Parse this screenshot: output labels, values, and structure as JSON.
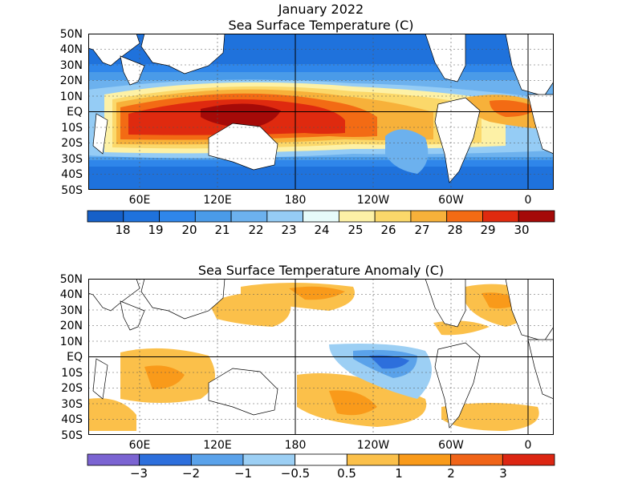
{
  "figure_title": "January 2022",
  "panels": [
    {
      "title": "Sea Surface Temperature (C)",
      "lat_labels": [
        "50N",
        "40N",
        "30N",
        "20N",
        "10N",
        "EQ",
        "10S",
        "20S",
        "30S",
        "40S",
        "50S"
      ],
      "lon_labels": [
        "60E",
        "120E",
        "180",
        "120W",
        "60W",
        "0"
      ],
      "colorbar": {
        "colors": [
          "#1660c8",
          "#1f72dc",
          "#2f86ea",
          "#4a9be8",
          "#6cb1ee",
          "#95ccf5",
          "#e6fbfa",
          "#fdf1a6",
          "#fbd86a",
          "#f7b13a",
          "#f36b14",
          "#df2a0f",
          "#a50a08"
        ],
        "labels": [
          "18",
          "19",
          "20",
          "21",
          "22",
          "23",
          "24",
          "25",
          "26",
          "27",
          "28",
          "29",
          "30"
        ]
      }
    },
    {
      "title": "Sea Surface Temperature Anomaly (C)",
      "lat_labels": [
        "50N",
        "40N",
        "30N",
        "20N",
        "10N",
        "EQ",
        "10S",
        "20S",
        "30S",
        "40S",
        "50S"
      ],
      "lon_labels": [
        "60E",
        "120E",
        "180",
        "120W",
        "60W",
        "0"
      ],
      "colorbar": {
        "colors": [
          "#7b64d2",
          "#2d6fdc",
          "#5aa2ea",
          "#9ccff4",
          "#ffffff",
          "#fbc04a",
          "#f99a1a",
          "#f06418",
          "#dc2612"
        ],
        "labels": [
          "−3",
          "−2",
          "−1",
          "−0.5",
          "0.5",
          "1",
          "2",
          "3"
        ]
      }
    }
  ]
}
